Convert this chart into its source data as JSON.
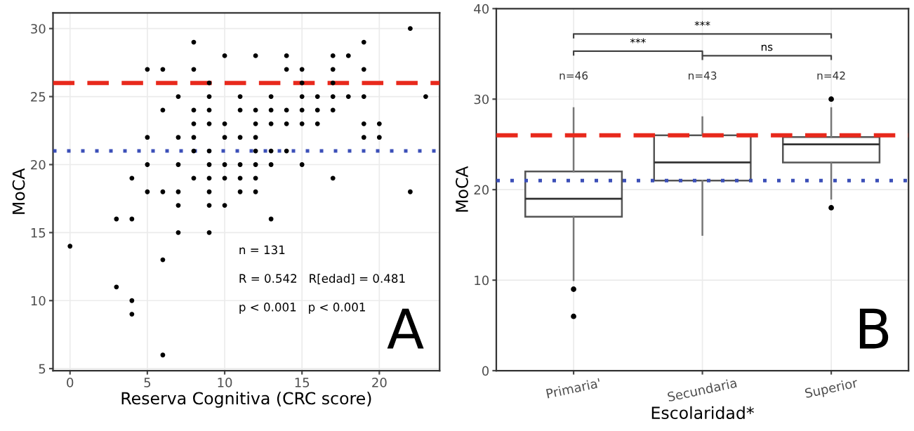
{
  "chart_data": [
    {
      "type": "scatter",
      "xlabel": "Reserva Cognitiva (CRC score)",
      "ylabel": "MoCA",
      "x": [
        22,
        8,
        19,
        10,
        12,
        14,
        17,
        18,
        5,
        6,
        8,
        14,
        15,
        17,
        19,
        9,
        15,
        17,
        7,
        9,
        11,
        13,
        15,
        16,
        17,
        18,
        19,
        23,
        6,
        8,
        9,
        11,
        12,
        13,
        14,
        15,
        16,
        17,
        8,
        9,
        10,
        12,
        13,
        14,
        15,
        16,
        19,
        20,
        5,
        7,
        8,
        10,
        11,
        12,
        19,
        20,
        8,
        9,
        12,
        13,
        14,
        5,
        7,
        9,
        10,
        11,
        12,
        13,
        15,
        4,
        8,
        9,
        10,
        11,
        12,
        17,
        5,
        6,
        7,
        9,
        11,
        12,
        22,
        7,
        9,
        10,
        3,
        4,
        13,
        7,
        9,
        0,
        6,
        3,
        4,
        4,
        6
      ],
      "series": [
        {
          "color": "#000000",
          "values": [
            30,
            29,
            29,
            28,
            28,
            28,
            28,
            28,
            27,
            27,
            27,
            27,
            27,
            27,
            27,
            26,
            26,
            26,
            25,
            25,
            25,
            25,
            25,
            25,
            25,
            25,
            25,
            25,
            24,
            24,
            24,
            24,
            24,
            24,
            24,
            24,
            24,
            24,
            23,
            23,
            23,
            23,
            23,
            23,
            23,
            23,
            23,
            23,
            22,
            22,
            22,
            22,
            22,
            22,
            22,
            22,
            21,
            21,
            21,
            21,
            21,
            20,
            20,
            20,
            20,
            20,
            20,
            20,
            20,
            19,
            19,
            19,
            19,
            19,
            19,
            19,
            18,
            18,
            18,
            18,
            18,
            18,
            18,
            17,
            17,
            17,
            16,
            16,
            16,
            15,
            15,
            14,
            13,
            11,
            10,
            9,
            6
          ]
        }
      ],
      "marker": "circle",
      "xlim": [
        -1.1,
        23.9
      ],
      "xticks": [
        0,
        5,
        10,
        15,
        20
      ],
      "ylim": [
        4.85,
        31.15
      ],
      "yticks": [
        5,
        10,
        15,
        20,
        25,
        30
      ],
      "grid": true,
      "ref_lines": [
        {
          "axis": "y",
          "value": 26,
          "color": "#e8291c",
          "line_style": "dashed"
        },
        {
          "axis": "y",
          "value": 21,
          "color": "#3b4fb8",
          "line_style": "dotted"
        }
      ],
      "annotations": [
        "n = 131",
        "R = 0.542   R[edad] = 0.481",
        "p < 0.001   p < 0.001",
        "A"
      ]
    },
    {
      "type": "box",
      "xlabel": "Escolaridad*",
      "ylabel": "MoCA",
      "categories": [
        "Primaria'",
        "Secundaria",
        "Superior"
      ],
      "boxes": [
        {
          "low": 10,
          "q1": 17,
          "median": 19,
          "q3": 22,
          "high": 29,
          "outliers": [
            9,
            6
          ]
        },
        {
          "low": 15,
          "q1": 21,
          "median": 23,
          "q3": 26,
          "high": 28
        },
        {
          "low": 19,
          "q1": 23,
          "median": 25,
          "q3": 25.8,
          "high": 29,
          "outliers": [
            30,
            18
          ]
        }
      ],
      "ylim": [
        0,
        40
      ],
      "yticks": [
        0,
        10,
        20,
        30,
        40
      ],
      "grid": true,
      "ref_lines": [
        {
          "axis": "y",
          "value": 26,
          "color": "#e8291c",
          "line_style": "dashed"
        },
        {
          "axis": "y",
          "value": 21,
          "color": "#3b4fb8",
          "line_style": "dotted"
        }
      ],
      "annotations": [
        "n=46",
        "n=43",
        "n=42",
        "***",
        "***",
        "ns",
        "B"
      ]
    }
  ]
}
